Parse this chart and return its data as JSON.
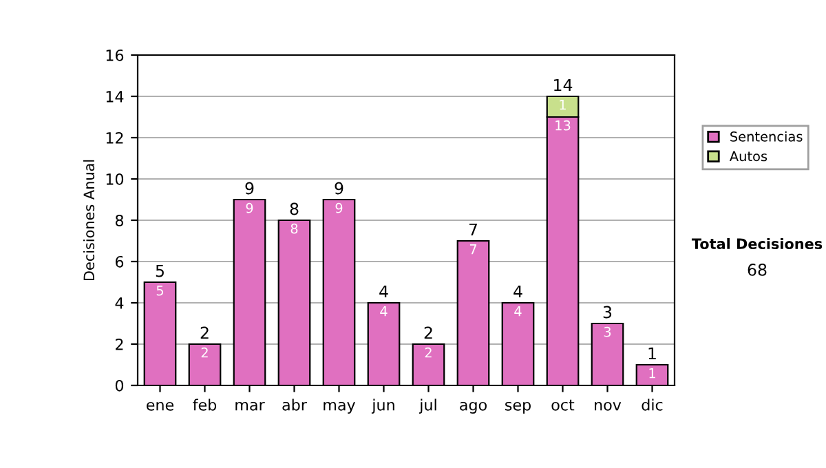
{
  "chart_data": {
    "type": "bar",
    "stacked": true,
    "ylabel": "Decisiones Anual",
    "categories": [
      "ene",
      "feb",
      "mar",
      "abr",
      "may",
      "jun",
      "jul",
      "ago",
      "sep",
      "oct",
      "nov",
      "dic"
    ],
    "series": [
      {
        "name": "Sentencias",
        "color": "#e070c0",
        "values": [
          5,
          2,
          9,
          8,
          9,
          4,
          2,
          7,
          4,
          13,
          3,
          1
        ],
        "value_labels": [
          "5",
          "2",
          "9",
          "8",
          "9",
          "4",
          "2",
          "7",
          "4",
          "13",
          "3",
          "1"
        ]
      },
      {
        "name": "Autos",
        "color": "#c8e08c",
        "values": [
          null,
          null,
          null,
          null,
          null,
          null,
          null,
          null,
          null,
          1,
          null,
          null
        ],
        "value_labels": [
          null,
          null,
          null,
          null,
          null,
          null,
          null,
          null,
          null,
          "1",
          null,
          null
        ]
      }
    ],
    "totals": [
      "5",
      "2",
      "9",
      "8",
      "9",
      "4",
      "2",
      "7",
      "4",
      "14",
      "3",
      "1"
    ],
    "ylim": [
      0,
      16
    ],
    "yticks": [
      0,
      2,
      4,
      6,
      8,
      10,
      12,
      14,
      16
    ],
    "grid": "y",
    "legend": "right",
    "annotations": [
      "Total Decisiones",
      "68"
    ]
  }
}
